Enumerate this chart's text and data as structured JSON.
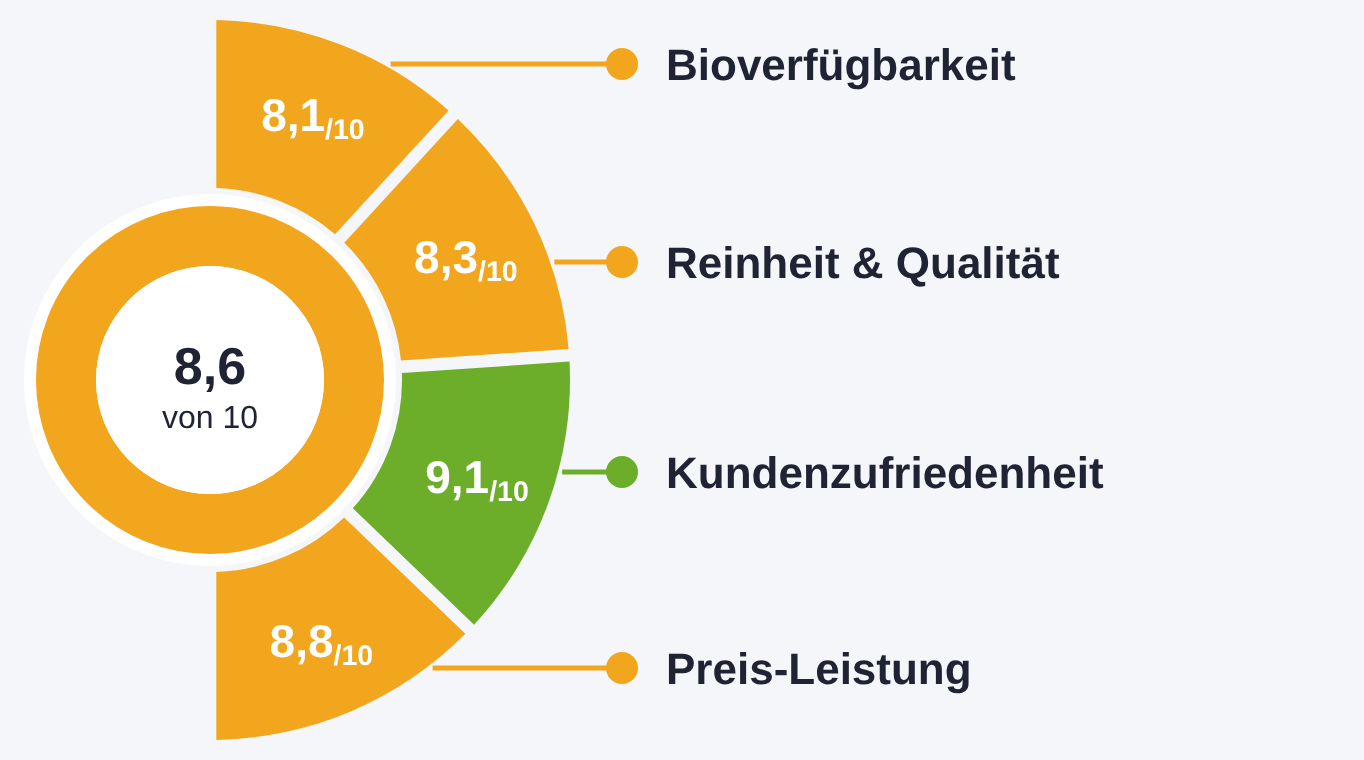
{
  "chart_data": {
    "type": "donut",
    "categories": [
      "Bioverfügbarkeit",
      "Reinheit & Qualität",
      "Kundenzufriedenheit",
      "Preis-Leistung"
    ],
    "values": [
      8.1,
      8.3,
      9.1,
      8.8
    ],
    "value_labels": [
      "8,1$_{/10}$",
      "8,3$_{/10}$",
      "9,1$_{/10}$",
      "8,8$_{/10}$"
    ],
    "colors": [
      "#f2a61e",
      "#f2a61e",
      "#6cad2a",
      "#f2a61e"
    ],
    "legend": "right",
    "annotations": [
      "8,6",
      "von 10"
    ]
  }
}
